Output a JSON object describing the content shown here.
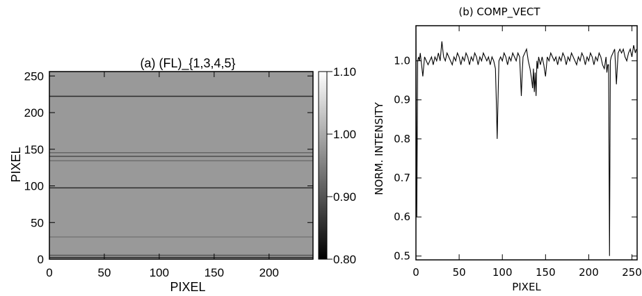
{
  "chart_data": [
    {
      "type": "heatmap",
      "title": "(a)  (FL)_{1,3,4,5}",
      "xlabel": "PIXEL",
      "ylabel": "PIXEL",
      "xlim": [
        0,
        240
      ],
      "ylim": [
        0,
        256
      ],
      "xticks": [
        "0",
        "50",
        "100",
        "150",
        "200"
      ],
      "yticks": [
        "0",
        "50",
        "100",
        "150",
        "200",
        "250"
      ],
      "colorbar": {
        "min": 0.8,
        "max": 1.1,
        "ticks": [
          "0.80",
          "0.90",
          "1.00",
          "1.10"
        ]
      },
      "base_value": 0.98,
      "row_bands": [
        {
          "row": 2,
          "value": 0.84
        },
        {
          "row": 5,
          "value": 0.9
        },
        {
          "row": 30,
          "value": 0.94
        },
        {
          "row": 97,
          "value": 0.85
        },
        {
          "row": 134,
          "value": 0.93
        },
        {
          "row": 140,
          "value": 0.89
        },
        {
          "row": 145,
          "value": 0.92
        },
        {
          "row": 222,
          "value": 0.85
        }
      ]
    },
    {
      "type": "line",
      "title": "(b)   COMP_VECT",
      "xlabel": "PIXEL",
      "ylabel": "NORM. INTENSITY",
      "xlim": [
        0,
        256
      ],
      "ylim": [
        0.49,
        1.09
      ],
      "xticks": [
        "0",
        "50",
        "100",
        "150",
        "200",
        "250"
      ],
      "yticks": [
        "0.5",
        "0.6",
        "0.7",
        "0.8",
        "0.9",
        "1.0"
      ],
      "series": [
        {
          "x": [
            0,
            1,
            2,
            3,
            4,
            5,
            6,
            8,
            10,
            12,
            14,
            16,
            18,
            20,
            22,
            24,
            26,
            28,
            30,
            31,
            32,
            34,
            36,
            38,
            40,
            42,
            44,
            46,
            48,
            50,
            52,
            54,
            56,
            58,
            60,
            62,
            64,
            66,
            68,
            70,
            72,
            74,
            76,
            78,
            80,
            82,
            84,
            86,
            88,
            90,
            92,
            93,
            94,
            95,
            96,
            98,
            100,
            102,
            104,
            106,
            108,
            110,
            112,
            114,
            116,
            118,
            120,
            121,
            122,
            123,
            124,
            126,
            128,
            130,
            132,
            134,
            135,
            136,
            137,
            138,
            139,
            140,
            141,
            142,
            144,
            146,
            148,
            150,
            152,
            154,
            156,
            158,
            160,
            162,
            164,
            166,
            168,
            170,
            172,
            174,
            176,
            178,
            180,
            182,
            184,
            186,
            188,
            190,
            192,
            194,
            196,
            198,
            200,
            202,
            204,
            206,
            208,
            210,
            212,
            214,
            216,
            218,
            220,
            221,
            222,
            223,
            224,
            225,
            226,
            228,
            230,
            231,
            232,
            233,
            234,
            236,
            238,
            240,
            242,
            244,
            246,
            248,
            250,
            252,
            254,
            255
          ],
          "y": [
            1.09,
            0.6,
            1.0,
            1.01,
            1.0,
            1.02,
            1.0,
            0.96,
            1.01,
            1.0,
            0.99,
            1.0,
            1.01,
            0.99,
            1.01,
            1.0,
            1.02,
            1.0,
            1.05,
            1.03,
            1.01,
            1.0,
            1.02,
            1.01,
            1.0,
            0.99,
            1.01,
            1.0,
            1.02,
            1.01,
            0.99,
            1.01,
            1.0,
            1.02,
            1.01,
            0.99,
            1.01,
            1.0,
            1.02,
            1.01,
            0.99,
            1.01,
            1.0,
            1.02,
            1.01,
            1.0,
            1.01,
            0.99,
            1.01,
            1.0,
            0.98,
            0.9,
            0.8,
            0.9,
            1.0,
            1.01,
            1.0,
            1.02,
            1.01,
            0.99,
            1.01,
            1.0,
            1.02,
            1.01,
            1.0,
            1.02,
            1.01,
            0.96,
            0.91,
            0.97,
            1.01,
            1.02,
            1.03,
            1.0,
            0.98,
            0.95,
            0.93,
            0.98,
            0.92,
            0.97,
            0.91,
            1.0,
            0.98,
            1.01,
            0.99,
            1.01,
            0.99,
            0.96,
            1.01,
            1.0,
            1.02,
            1.01,
            1.0,
            1.01,
            0.99,
            1.01,
            1.0,
            1.02,
            1.01,
            0.99,
            1.01,
            1.0,
            1.02,
            1.01,
            1.0,
            0.99,
            1.01,
            1.0,
            1.02,
            1.01,
            0.99,
            1.01,
            1.0,
            1.02,
            1.01,
            0.99,
            1.01,
            1.0,
            1.02,
            1.01,
            0.99,
            0.98,
            1.01,
            0.97,
            0.99,
            0.99,
            0.5,
            1.0,
            1.01,
            1.02,
            1.03,
            0.99,
            0.94,
            0.98,
            1.02,
            1.03,
            1.02,
            1.03,
            1.01,
            1.0,
            1.02,
            1.03,
            1.01,
            1.04,
            1.02,
            1.03
          ]
        }
      ]
    }
  ]
}
